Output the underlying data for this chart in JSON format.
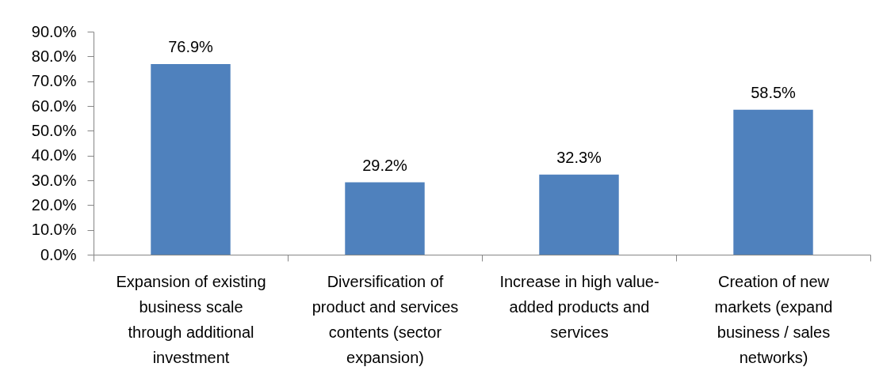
{
  "chart_data": {
    "type": "bar",
    "categories": [
      "Expansion of existing business scale through additional investment",
      "Diversification of product and services contents (sector expansion)",
      "Increase in high value-added products and services",
      "Creation of new markets (expand business / sales networks)"
    ],
    "values": [
      76.9,
      29.2,
      32.3,
      58.5
    ],
    "color": "#4f81bd",
    "value_labels": [
      "76.9%",
      "29.2%",
      "32.3%",
      "58.5%"
    ],
    "ylim": [
      0,
      90
    ],
    "yticks": [
      {
        "value": 0,
        "label": "0.0%"
      },
      {
        "value": 10,
        "label": "10.0%"
      },
      {
        "value": 20,
        "label": "20.0%"
      },
      {
        "value": 30,
        "label": "30.0%"
      },
      {
        "value": 40,
        "label": "40.0%"
      },
      {
        "value": 50,
        "label": "50.0%"
      },
      {
        "value": 60,
        "label": "60.0%"
      },
      {
        "value": 70,
        "label": "70.0%"
      },
      {
        "value": 80,
        "label": "80.0%"
      },
      {
        "value": 90,
        "label": "90.0%"
      }
    ]
  }
}
